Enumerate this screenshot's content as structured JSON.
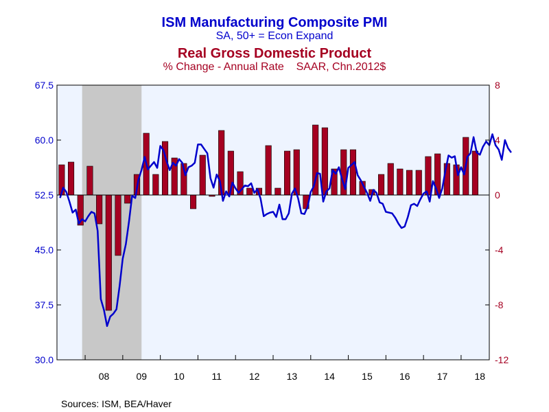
{
  "titles": {
    "pmi_title": "ISM Manufacturing Composite PMI",
    "pmi_subtitle": "SA, 50+ = Econ Expand",
    "gdp_title": "Real Gross Domestic Product",
    "gdp_subtitle": "% Change - Annual Rate    SAAR, Chn.2012$"
  },
  "source": "Sources:  ISM, BEA/Haver",
  "colors": {
    "pmi": "#0000cc",
    "gdp": "#a50021",
    "recession": "#c8c8c8",
    "plot_bg": "#eef4ff"
  },
  "chart_data": {
    "type": "bar+line",
    "x_range": [
      2007.25,
      2018.75
    ],
    "x_tick_labels": [
      {
        "label": "08",
        "year": 2008
      },
      {
        "label": "09",
        "year": 2009
      },
      {
        "label": "10",
        "year": 2010
      },
      {
        "label": "11",
        "year": 2011
      },
      {
        "label": "12",
        "year": 2012
      },
      {
        "label": "13",
        "year": 2013
      },
      {
        "label": "14",
        "year": 2014
      },
      {
        "label": "15",
        "year": 2015
      },
      {
        "label": "16",
        "year": 2016
      },
      {
        "label": "17",
        "year": 2017
      },
      {
        "label": "18",
        "year": 2018
      }
    ],
    "left_axis": {
      "range": [
        30.0,
        67.5
      ],
      "ticks": [
        "30.0",
        "37.5",
        "45.0",
        "52.5",
        "60.0",
        "67.5"
      ],
      "tick_values": [
        30.0,
        37.5,
        45.0,
        52.5,
        60.0,
        67.5
      ]
    },
    "right_axis": {
      "range": [
        -12,
        8
      ],
      "ticks": [
        "-12",
        "-8",
        "-4",
        "0",
        "4",
        "8"
      ],
      "tick_values": [
        -12,
        -8,
        -4,
        0,
        4,
        8
      ]
    },
    "recession": {
      "start": 2007.92,
      "end": 2009.5
    },
    "gdp_series": {
      "axis": "right",
      "quarters": [
        "2007Q2",
        "2007Q3",
        "2007Q4",
        "2008Q1",
        "2008Q2",
        "2008Q3",
        "2008Q4",
        "2009Q1",
        "2009Q2",
        "2009Q3",
        "2009Q4",
        "2010Q1",
        "2010Q2",
        "2010Q3",
        "2010Q4",
        "2011Q1",
        "2011Q2",
        "2011Q3",
        "2011Q4",
        "2012Q1",
        "2012Q2",
        "2012Q3",
        "2012Q4",
        "2013Q1",
        "2013Q2",
        "2013Q3",
        "2013Q4",
        "2014Q1",
        "2014Q2",
        "2014Q3",
        "2014Q4",
        "2015Q1",
        "2015Q2",
        "2015Q3",
        "2015Q4",
        "2016Q1",
        "2016Q2",
        "2016Q3",
        "2016Q4",
        "2017Q1",
        "2017Q2",
        "2017Q3",
        "2017Q4",
        "2018Q1",
        "2018Q2"
      ],
      "values": [
        2.2,
        2.4,
        -2.2,
        2.1,
        -2.1,
        -8.4,
        -4.4,
        -0.6,
        1.5,
        4.5,
        1.5,
        3.9,
        2.7,
        2.3,
        -1.0,
        2.9,
        -0.1,
        4.7,
        3.2,
        1.7,
        0.5,
        0.5,
        3.6,
        0.5,
        3.2,
        3.3,
        -1.0,
        5.1,
        4.9,
        1.9,
        3.3,
        3.3,
        1.0,
        0.4,
        1.5,
        2.3,
        1.9,
        1.8,
        1.8,
        2.8,
        3.0,
        2.3,
        2.2,
        4.2,
        3.2
      ]
    },
    "pmi_series": {
      "axis": "left",
      "start": 2007.333,
      "step": 0.08333,
      "values": [
        52.1,
        53.5,
        52.9,
        51.6,
        50.1,
        50.5,
        48.6,
        49.2,
        48.9,
        49.6,
        50.2,
        50.0,
        47.6,
        38.3,
        36.8,
        34.6,
        35.9,
        36.3,
        36.9,
        40.1,
        43.8,
        45.8,
        48.9,
        52.4,
        52.1,
        54.6,
        55.9,
        57.7,
        56.0,
        56.5,
        57.0,
        56.2,
        59.2,
        58.6,
        57.1,
        55.9,
        56.9,
        56.5,
        57.4,
        56.9,
        55.2,
        56.3,
        56.5,
        56.9,
        59.4,
        59.4,
        58.8,
        58.2,
        54.8,
        53.5,
        55.3,
        54.4,
        51.7,
        53.0,
        52.3,
        54.2,
        53.4,
        52.8,
        53.3,
        53.8,
        53.7,
        54.1,
        52.8,
        53.3,
        52.0,
        49.6,
        49.9,
        50.1,
        50.2,
        49.5,
        51.2,
        49.2,
        49.2,
        50.0,
        52.7,
        53.4,
        52.0,
        50.0,
        49.9,
        50.9,
        52.9,
        53.7,
        55.5,
        55.4,
        51.6,
        53.0,
        53.4,
        55.9,
        55.4,
        56.3,
        54.7,
        53.3,
        56.2,
        56.6,
        57.0,
        55.2,
        54.5,
        53.6,
        52.8,
        51.7,
        53.2,
        52.8,
        51.5,
        51.3,
        50.2,
        50.1,
        50.0,
        49.4,
        48.6,
        48.0,
        48.2,
        49.5,
        51.1,
        51.3,
        51.0,
        51.9,
        52.7,
        53.0,
        51.6,
        54.4,
        53.4,
        52.1,
        53.4,
        55.8,
        57.9,
        57.6,
        57.8,
        55.2,
        56.3,
        55.3,
        57.7,
        58.2,
        60.4,
        58.3,
        58.0,
        59.1,
        59.8,
        59.3,
        60.8,
        59.3,
        58.7,
        57.3,
        60.0,
        58.9,
        58.3
      ]
    }
  }
}
